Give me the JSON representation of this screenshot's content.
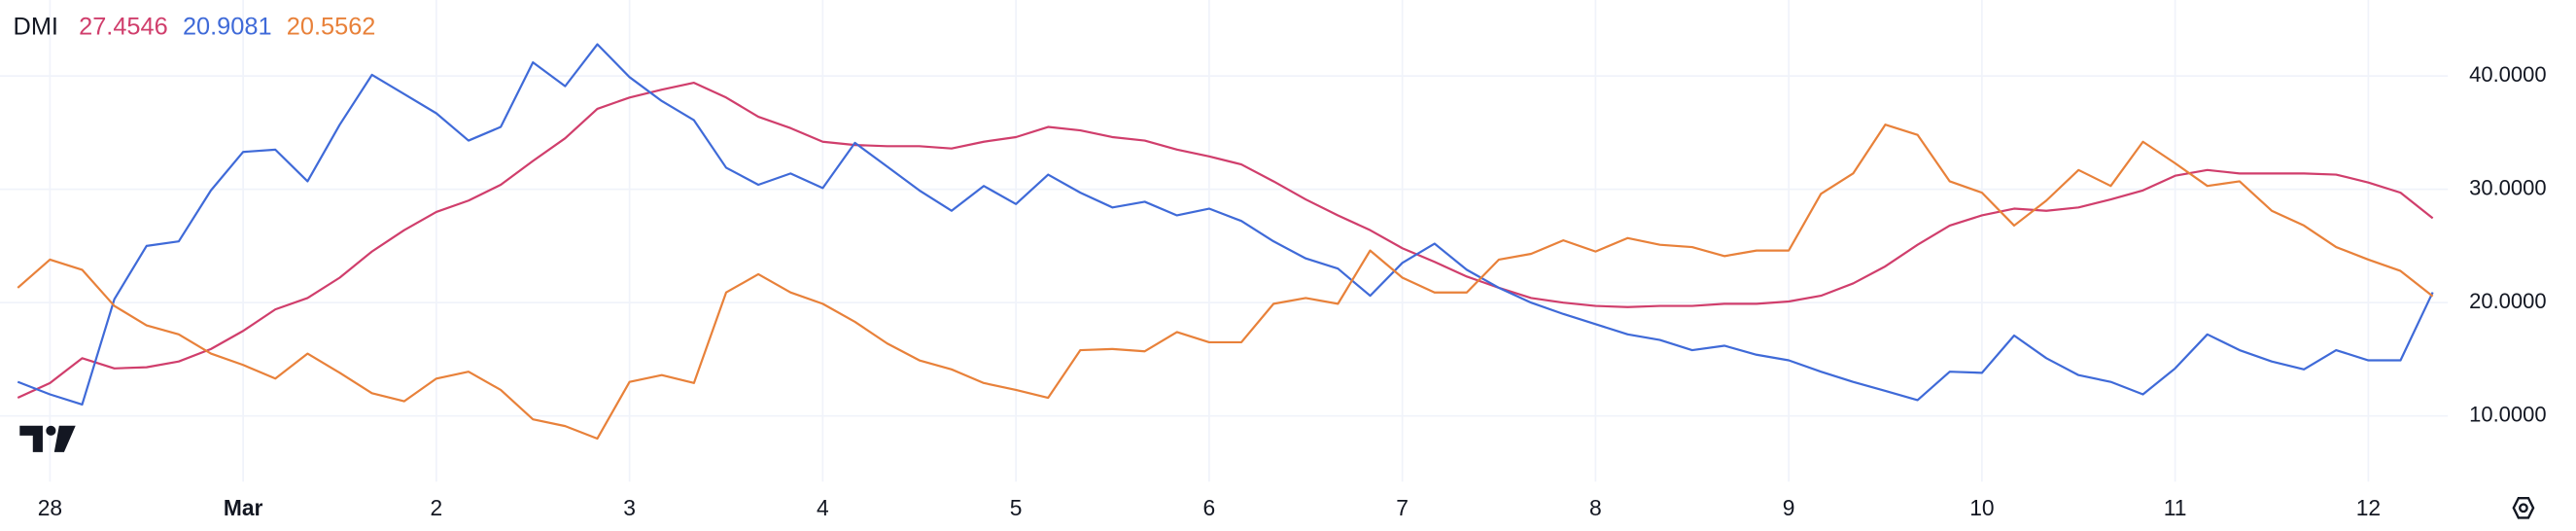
{
  "chart_data": {
    "type": "line",
    "title": "DMI",
    "legend_values": [
      "27.4546",
      "20.9081",
      "20.5562"
    ],
    "categories": [
      null,
      "28",
      null,
      null,
      null,
      null,
      null,
      "Mar",
      null,
      null,
      null,
      null,
      null,
      "2",
      null,
      null,
      null,
      null,
      null,
      "3",
      null,
      null,
      null,
      null,
      null,
      "4",
      null,
      null,
      null,
      null,
      null,
      "5",
      null,
      null,
      null,
      null,
      null,
      "6",
      null,
      null,
      null,
      null,
      null,
      "7",
      null,
      null,
      null,
      null,
      null,
      "8",
      null,
      null,
      null,
      null,
      null,
      "9",
      null,
      null,
      null,
      null,
      null,
      "10",
      null,
      null,
      null,
      null,
      null,
      "11",
      null,
      null,
      null,
      null,
      null,
      "12",
      null,
      null
    ],
    "series": [
      {
        "color": "#d03e6c",
        "values": [
          11.6,
          12.9,
          15.1,
          14.2,
          14.3,
          14.8,
          15.9,
          17.5,
          19.4,
          20.4,
          22.2,
          24.5,
          26.4,
          28,
          29,
          30.4,
          32.5,
          34.5,
          37.1,
          38.1,
          38.8,
          39.4,
          38.1,
          36.4,
          35.4,
          34.2,
          33.9,
          33.8,
          33.8,
          33.6,
          34.2,
          34.6,
          35.5,
          35.2,
          34.6,
          34.3,
          33.5,
          32.9,
          32.2,
          30.7,
          29.1,
          27.7,
          26.4,
          24.8,
          23.6,
          22.3,
          21.3,
          20.4,
          20,
          19.7,
          19.6,
          19.7,
          19.7,
          19.9,
          19.9,
          20.1,
          20.6,
          21.7,
          23.2,
          25.1,
          26.8,
          27.7,
          28.3,
          28.1,
          28.4,
          29.1,
          29.9,
          31.2,
          31.7,
          31.4,
          31.4,
          31.4,
          31.3,
          30.6,
          29.7,
          27.4546
        ]
      },
      {
        "color": "#3f6ad8",
        "values": [
          13,
          11.9,
          11,
          20.3,
          25,
          25.4,
          29.9,
          33.3,
          33.5,
          30.7,
          35.7,
          40.1,
          38.4,
          36.7,
          34.3,
          35.5,
          41.2,
          39.1,
          42.8,
          39.9,
          37.8,
          36.1,
          31.9,
          30.4,
          31.4,
          30.1,
          34.1,
          32,
          29.9,
          28.1,
          30.3,
          28.7,
          31.3,
          29.7,
          28.4,
          28.9,
          27.7,
          28.3,
          27.2,
          25.4,
          23.9,
          23,
          20.6,
          23.5,
          25.2,
          22.9,
          21.3,
          20,
          19,
          18.1,
          17.2,
          16.7,
          15.8,
          16.2,
          15.4,
          14.9,
          13.9,
          13,
          12.2,
          11.4,
          13.9,
          13.8,
          17.1,
          15.1,
          13.6,
          13,
          11.9,
          14.2,
          17.2,
          15.8,
          14.8,
          14.1,
          15.8,
          14.9,
          14.9,
          20.9081
        ]
      },
      {
        "color": "#e8813a",
        "values": [
          21.3,
          23.8,
          22.9,
          19.7,
          18,
          17.2,
          15.5,
          14.5,
          13.3,
          15.5,
          13.8,
          12,
          11.3,
          13.3,
          13.9,
          12.3,
          9.7,
          9.1,
          8,
          13,
          13.6,
          12.9,
          20.9,
          22.5,
          20.9,
          19.9,
          18.3,
          16.4,
          14.9,
          14.1,
          12.9,
          12.3,
          11.6,
          15.8,
          15.9,
          15.7,
          17.4,
          16.5,
          16.5,
          19.9,
          20.4,
          19.9,
          24.6,
          22.2,
          20.9,
          20.9,
          23.8,
          24.3,
          25.5,
          24.5,
          25.7,
          25.1,
          24.9,
          24.1,
          24.6,
          24.6,
          29.6,
          31.4,
          35.7,
          34.8,
          30.7,
          29.7,
          26.8,
          29,
          31.7,
          30.3,
          34.2,
          32.3,
          30.3,
          30.7,
          28.1,
          26.8,
          24.9,
          23.8,
          22.8,
          20.5562
        ]
      }
    ],
    "ylim": [
      4.2,
      46.7
    ],
    "yticks": [
      {
        "value": 10,
        "label": "10.0000"
      },
      {
        "value": 20,
        "label": "20.0000"
      },
      {
        "value": 30,
        "label": "30.0000"
      },
      {
        "value": 40,
        "label": "40.0000"
      }
    ],
    "grid": true
  }
}
